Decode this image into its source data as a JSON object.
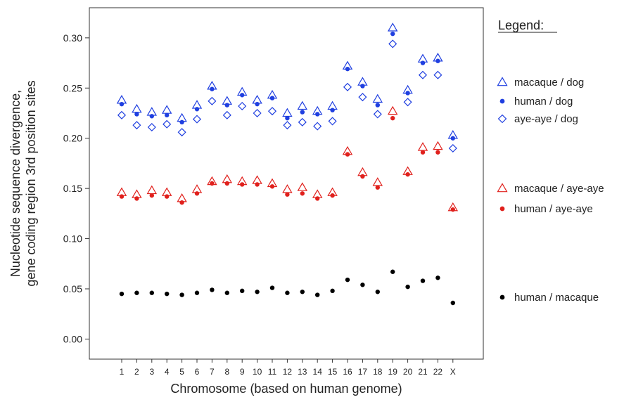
{
  "chart_data": {
    "type": "scatter",
    "xlabel": "Chromosome (based on human genome)",
    "ylabel_lines": [
      "Nucleotide sequence divergence,",
      "gene coding region 3rd position sites"
    ],
    "categories": [
      "1",
      "2",
      "3",
      "4",
      "5",
      "6",
      "7",
      "8",
      "9",
      "10",
      "11",
      "12",
      "13",
      "14",
      "15",
      "16",
      "17",
      "18",
      "19",
      "20",
      "21",
      "22",
      "X"
    ],
    "ylim": [
      -0.02,
      0.33
    ],
    "yticks": [
      "0.00",
      "0.05",
      "0.10",
      "0.15",
      "0.20",
      "0.25",
      "0.30"
    ],
    "grid": false,
    "legend": {
      "title": "Legend:",
      "placement": "right"
    },
    "series": [
      {
        "name": "macaque / dog",
        "marker": "triangle-open",
        "color": "#1f3fe0",
        "values": [
          0.238,
          0.229,
          0.226,
          0.228,
          0.22,
          0.233,
          0.252,
          0.237,
          0.246,
          0.238,
          0.243,
          0.225,
          0.232,
          0.227,
          0.232,
          0.272,
          0.256,
          0.239,
          0.31,
          0.248,
          0.279,
          0.28,
          0.203
        ]
      },
      {
        "name": "human / dog",
        "marker": "circle-filled",
        "color": "#1f3fe0",
        "values": [
          0.234,
          0.224,
          0.222,
          0.223,
          0.216,
          0.229,
          0.249,
          0.233,
          0.243,
          0.234,
          0.24,
          0.22,
          0.226,
          0.224,
          0.228,
          0.269,
          0.252,
          0.233,
          0.304,
          0.245,
          0.275,
          0.277,
          0.2
        ]
      },
      {
        "name": "aye-aye / dog",
        "marker": "diamond-open",
        "color": "#1f3fe0",
        "values": [
          0.223,
          0.213,
          0.211,
          0.214,
          0.206,
          0.219,
          0.237,
          0.223,
          0.232,
          0.225,
          0.227,
          0.213,
          0.216,
          0.212,
          0.217,
          0.251,
          0.241,
          0.224,
          0.294,
          0.236,
          0.263,
          0.263,
          0.19
        ]
      },
      {
        "name": "macaque / aye-aye",
        "marker": "triangle-open",
        "color": "#e0201c",
        "values": [
          0.146,
          0.144,
          0.148,
          0.146,
          0.14,
          0.149,
          0.157,
          0.159,
          0.157,
          0.158,
          0.155,
          0.149,
          0.151,
          0.144,
          0.146,
          0.187,
          0.166,
          0.156,
          0.227,
          0.167,
          0.191,
          0.192,
          0.131
        ]
      },
      {
        "name": "human / aye-aye",
        "marker": "circle-filled",
        "color": "#e0201c",
        "values": [
          0.142,
          0.14,
          0.143,
          0.142,
          0.136,
          0.145,
          0.155,
          0.155,
          0.154,
          0.154,
          0.152,
          0.144,
          0.145,
          0.14,
          0.143,
          0.184,
          0.162,
          0.151,
          0.22,
          0.164,
          0.186,
          0.186,
          0.129
        ]
      },
      {
        "name": "human / macaque",
        "marker": "circle-filled",
        "color": "#000000",
        "values": [
          0.045,
          0.046,
          0.046,
          0.045,
          0.044,
          0.046,
          0.049,
          0.046,
          0.048,
          0.047,
          0.051,
          0.046,
          0.047,
          0.044,
          0.048,
          0.059,
          0.054,
          0.047,
          0.067,
          0.052,
          0.058,
          0.061,
          0.036
        ]
      }
    ]
  }
}
